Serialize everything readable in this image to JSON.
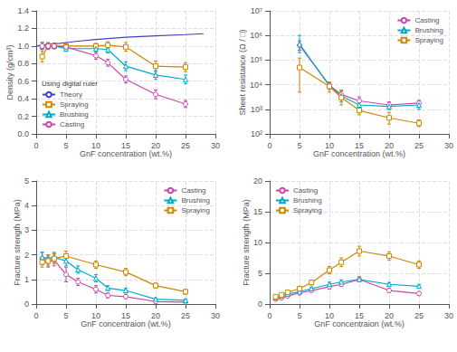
{
  "chart_data": [
    {
      "type": "line",
      "xlabel": "GnF concentration (wt.%)",
      "ylabel": "Density (g/cm³)",
      "xlim": [
        0,
        30
      ],
      "xticks": [
        0,
        5,
        10,
        15,
        20,
        25,
        30
      ],
      "ylim": [
        0.0,
        1.4
      ],
      "yticks": [
        {
          "value": 0.0,
          "label": "0.0"
        },
        0.2,
        0.4,
        0.6,
        0.8,
        {
          "value": 1.0,
          "label": "1.0"
        },
        1.2,
        1.4
      ],
      "grid": true,
      "legend": "lower left",
      "legend_title": "Using digital ruler",
      "series": [
        {
          "name": "Theory",
          "color": "#4040cc",
          "marker": "none",
          "x": [
            0,
            1,
            2,
            3,
            4,
            5,
            7,
            10,
            12,
            15,
            20,
            25,
            28
          ],
          "values": [
            1.0,
            1.01,
            1.02,
            1.025,
            1.03,
            1.04,
            1.055,
            1.075,
            1.085,
            1.1,
            1.115,
            1.13,
            1.14
          ]
        },
        {
          "name": "Spraying",
          "color": "#cc8800",
          "marker": "square",
          "x": [
            1,
            2,
            3,
            5,
            10,
            12,
            15,
            20,
            25
          ],
          "values": [
            0.88,
            1.0,
            1.0,
            1.0,
            1.0,
            1.01,
            0.99,
            0.77,
            0.76
          ],
          "error": [
            0.06,
            0.03,
            0.03,
            0.03,
            0.03,
            0.04,
            0.05,
            0.06,
            0.05
          ]
        },
        {
          "name": "Brushing",
          "color": "#00aacc",
          "marker": "triangle",
          "x": [
            1,
            2,
            3,
            5,
            10,
            12,
            15,
            20,
            25
          ],
          "values": [
            1.0,
            1.0,
            1.0,
            0.97,
            0.97,
            0.96,
            0.77,
            0.67,
            0.62
          ],
          "error": [
            0.04,
            0.03,
            0.03,
            0.03,
            0.04,
            0.04,
            0.05,
            0.05,
            0.05
          ]
        },
        {
          "name": "Casting",
          "color": "#cc44aa",
          "marker": "circle",
          "x": [
            1,
            2,
            3,
            5,
            10,
            12,
            15,
            20,
            25
          ],
          "values": [
            1.0,
            1.0,
            1.0,
            0.99,
            0.89,
            0.81,
            0.62,
            0.45,
            0.34
          ],
          "error": [
            0.04,
            0.04,
            0.03,
            0.03,
            0.04,
            0.04,
            0.04,
            0.05,
            0.04
          ]
        }
      ]
    },
    {
      "type": "line",
      "xlabel": "GnF concentration (wt.%)",
      "ylabel": "Sheet resistance (Ω / □)",
      "log": "y",
      "xlim": [
        0,
        30
      ],
      "xticks": [
        0,
        5,
        10,
        15,
        20,
        25,
        30
      ],
      "ylim": [
        100,
        10000000
      ],
      "yticks": [
        {
          "value": 100,
          "label": "10²"
        },
        {
          "value": 1000,
          "label": "10³"
        },
        {
          "value": 10000,
          "label": "10⁴"
        },
        {
          "value": 100000,
          "label": "10⁵"
        },
        {
          "value": 1000000,
          "label": "10⁶"
        },
        {
          "value": 10000000,
          "label": "10⁷"
        }
      ],
      "grid": true,
      "legend": "upper right",
      "series": [
        {
          "name": "Casting",
          "color": "#cc44aa",
          "marker": "circle",
          "x": [
            5,
            10,
            12,
            15,
            20,
            25
          ],
          "values": [
            400000.0,
            9500.0,
            4000.0,
            2200.0,
            1500.0,
            1800.0
          ],
          "error_low": [
            150000.0,
            2000.0,
            1500.0,
            800.0,
            500.0,
            500.0
          ],
          "error_high": [
            200000.0,
            3000.0,
            2000.0,
            1000.0,
            500.0,
            500.0
          ]
        },
        {
          "name": "Brushing",
          "color": "#00aacc",
          "marker": "triangle",
          "x": [
            5,
            10,
            12,
            15,
            20,
            25
          ],
          "values": [
            450000.0,
            9000.0,
            3500.0,
            1500.0,
            1300.0,
            1500.0
          ],
          "error_low": [
            250000.0,
            2500.0,
            1500.0,
            500.0,
            300.0,
            500.0
          ],
          "error_high": [
            550000.0,
            3500.0,
            2000.0,
            600.0,
            300.0,
            500.0
          ]
        },
        {
          "name": "Spraying",
          "color": "#cc8800",
          "marker": "square",
          "x": [
            5,
            10,
            12,
            15,
            20,
            25
          ],
          "values": [
            50000.0,
            8500.0,
            3000.0,
            900.0,
            450.0,
            270.0
          ],
          "error_low": [
            45000.0,
            3500.0,
            1500.0,
            300.0,
            200.0,
            70.0
          ],
          "error_high": [
            70000.0,
            4000.0,
            2500.0,
            400.0,
            300.0,
            100.0
          ]
        }
      ]
    },
    {
      "type": "line",
      "xlabel": "GnF concentraion (wt.%)",
      "ylabel": "Fracture strength (MPa)",
      "xlim": [
        0,
        30
      ],
      "xticks": [
        0,
        5,
        10,
        15,
        20,
        25,
        30
      ],
      "ylim": [
        0,
        5
      ],
      "yticks": [
        0,
        1,
        2,
        3,
        4,
        5
      ],
      "grid": true,
      "legend": "upper right",
      "series": [
        {
          "name": "Casting",
          "color": "#cc44aa",
          "marker": "circle",
          "x": [
            1,
            2,
            3,
            5,
            7,
            10,
            12,
            15,
            20,
            25
          ],
          "values": [
            1.85,
            1.7,
            1.8,
            1.2,
            0.9,
            0.6,
            0.35,
            0.3,
            0.1,
            0.08
          ],
          "error": [
            0.25,
            0.2,
            0.25,
            0.3,
            0.15,
            0.15,
            0.1,
            0.08,
            0.05,
            0.05
          ]
        },
        {
          "name": "Brushing",
          "color": "#00aacc",
          "marker": "triangle",
          "x": [
            1,
            2,
            3,
            5,
            7,
            10,
            12,
            15,
            20,
            25
          ],
          "values": [
            1.9,
            1.85,
            1.9,
            1.75,
            1.4,
            1.05,
            0.65,
            0.55,
            0.2,
            0.15
          ],
          "error": [
            0.2,
            0.15,
            0.2,
            0.2,
            0.15,
            0.15,
            0.1,
            0.1,
            0.05,
            0.05
          ]
        },
        {
          "name": "Spraying",
          "color": "#cc8800",
          "marker": "square",
          "x": [
            1,
            2,
            3,
            5,
            10,
            15,
            20,
            25
          ],
          "values": [
            1.7,
            1.75,
            1.85,
            1.95,
            1.6,
            1.3,
            0.75,
            0.5
          ],
          "error": [
            0.2,
            0.2,
            0.2,
            0.2,
            0.15,
            0.15,
            0.1,
            0.1
          ]
        }
      ]
    },
    {
      "type": "line",
      "xlabel": "GnF concentraion (wt.%)",
      "ylabel": "Fracture strength (MPa)",
      "xlim": [
        0,
        30
      ],
      "xticks": [
        0,
        5,
        10,
        15,
        20,
        25,
        30
      ],
      "ylim": [
        0,
        20
      ],
      "yticks": [
        0,
        5,
        10,
        15,
        20
      ],
      "grid": true,
      "legend": "upper left",
      "series": [
        {
          "name": "Casting",
          "color": "#cc44aa",
          "marker": "circle",
          "x": [
            1,
            2,
            3,
            5,
            7,
            10,
            12,
            15,
            20,
            25
          ],
          "values": [
            0.8,
            1.0,
            1.3,
            1.8,
            2.2,
            2.8,
            3.2,
            4.0,
            2.2,
            1.7
          ],
          "error": [
            0.15,
            0.15,
            0.2,
            0.25,
            0.25,
            0.35,
            0.35,
            0.4,
            0.3,
            0.3
          ]
        },
        {
          "name": "Brushing",
          "color": "#00aacc",
          "marker": "triangle",
          "x": [
            1,
            2,
            3,
            5,
            7,
            10,
            12,
            15,
            20,
            25
          ],
          "values": [
            1.0,
            1.3,
            1.6,
            2.0,
            2.5,
            3.2,
            3.6,
            4.0,
            3.2,
            2.9
          ],
          "error": [
            0.15,
            0.15,
            0.2,
            0.25,
            0.25,
            0.35,
            0.35,
            0.4,
            0.3,
            0.3
          ]
        },
        {
          "name": "Spraying",
          "color": "#cc8800",
          "marker": "square",
          "x": [
            1,
            2,
            3,
            5,
            7,
            10,
            12,
            15,
            20,
            25
          ],
          "values": [
            1.2,
            1.5,
            1.9,
            2.5,
            3.5,
            5.5,
            6.8,
            8.6,
            7.8,
            6.4
          ],
          "error": [
            0.2,
            0.2,
            0.25,
            0.3,
            0.4,
            0.6,
            0.7,
            0.8,
            0.7,
            0.6
          ]
        }
      ]
    }
  ]
}
